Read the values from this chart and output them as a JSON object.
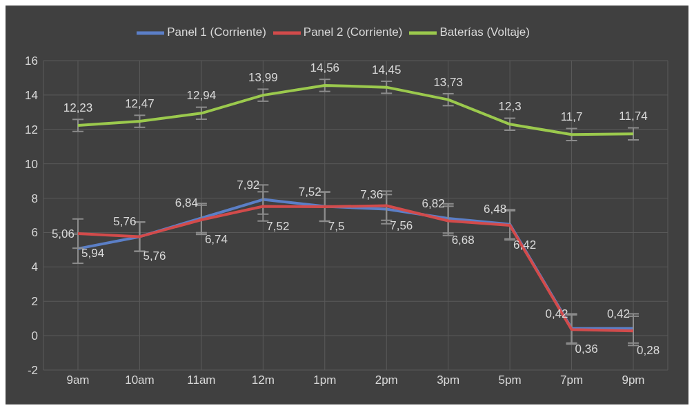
{
  "chart_data": {
    "type": "line",
    "categories": [
      "9am",
      "10am",
      "11am",
      "12m",
      "1pm",
      "2pm",
      "3pm",
      "5pm",
      "7pm",
      "9pm"
    ],
    "series": [
      {
        "name": "Panel 1 (Corriente)",
        "color": "#5b7fc7",
        "values": [
          5.06,
          5.76,
          6.84,
          7.92,
          7.52,
          7.36,
          6.82,
          6.48,
          0.42,
          0.42
        ],
        "errors": [
          0.85,
          0.85,
          0.85,
          0.85,
          0.85,
          0.85,
          0.85,
          0.85,
          0.85,
          0.85
        ],
        "value_labels": [
          "5,06",
          "5,76",
          "6,84",
          "7,92",
          "7,52",
          "7,36",
          "6,82",
          "6,48",
          "0,42",
          "0,42"
        ]
      },
      {
        "name": "Panel 2 (Corriente)",
        "color": "#d24b4b",
        "values": [
          5.94,
          5.76,
          6.74,
          7.52,
          7.5,
          7.56,
          6.68,
          6.42,
          0.36,
          0.28
        ],
        "errors": [
          0.85,
          0.85,
          0.85,
          0.85,
          0.85,
          0.85,
          0.85,
          0.85,
          0.85,
          0.85
        ],
        "value_labels": [
          "5,94",
          "5,76",
          "6,74",
          "7,52",
          "7,5",
          "7,56",
          "6,68",
          "6,42",
          "0,36",
          "0,28"
        ]
      },
      {
        "name": "Baterías (Voltaje)",
        "color": "#9bc94d",
        "values": [
          12.23,
          12.47,
          12.94,
          13.99,
          14.56,
          14.45,
          13.73,
          12.3,
          11.7,
          11.74
        ],
        "errors": [
          0.35,
          0.35,
          0.35,
          0.35,
          0.35,
          0.35,
          0.35,
          0.35,
          0.35,
          0.35
        ],
        "value_labels": [
          "12,23",
          "12,47",
          "12,94",
          "13,99",
          "14,56",
          "14,45",
          "13,73",
          "12,3",
          "11,7",
          "11,74"
        ]
      }
    ],
    "ylim": [
      -2,
      16
    ],
    "yticks": [
      -2,
      0,
      2,
      4,
      6,
      8,
      10,
      12,
      14,
      16
    ],
    "grid": true,
    "legend": "top",
    "marker": "none",
    "line_style": "solid"
  }
}
